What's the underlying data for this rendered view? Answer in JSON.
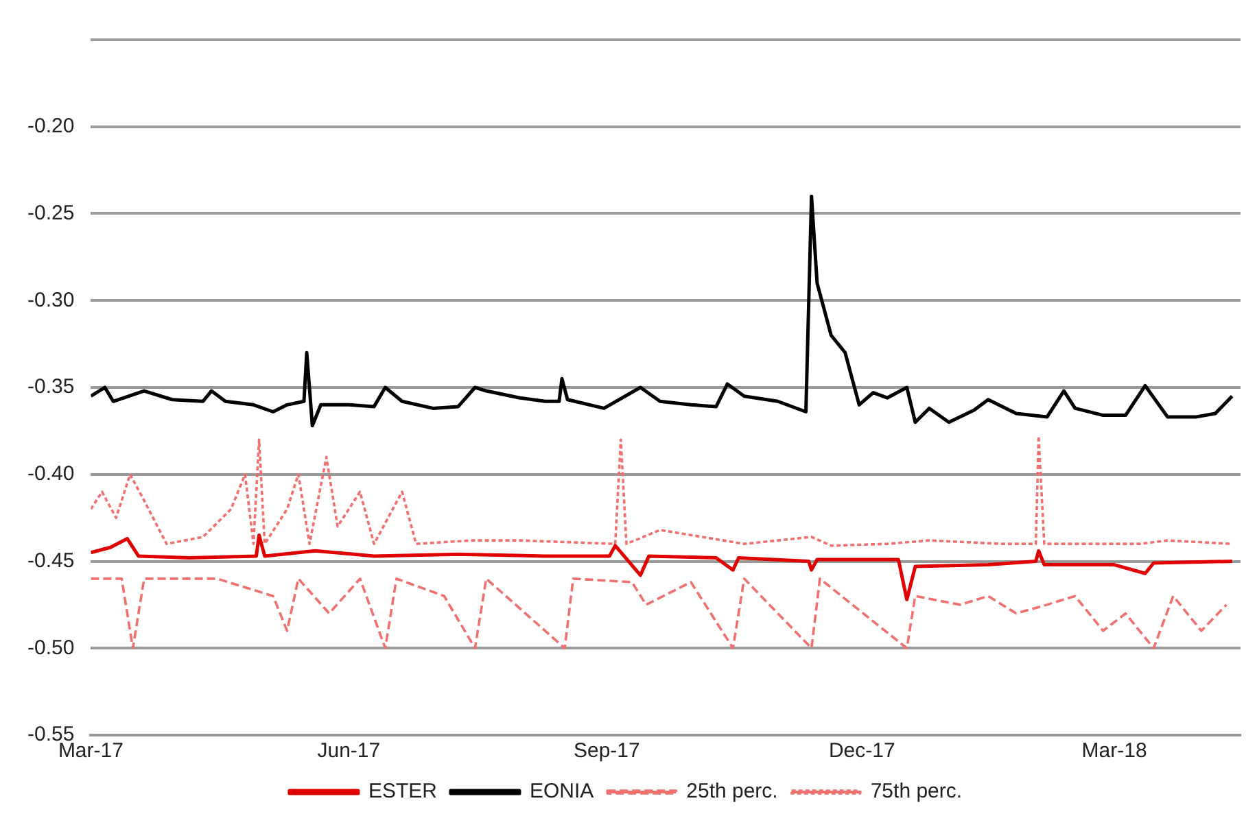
{
  "chart_data": {
    "type": "line",
    "legend": "bottom",
    "grid": "y",
    "marker": "none",
    "xlim": [
      "2017-03-01",
      "2018-04-15"
    ],
    "xticks": [
      {
        "value": "2017-03-01",
        "label": "Mar-17"
      },
      {
        "value": "2017-06-01",
        "label": "Jun-17"
      },
      {
        "value": "2017-09-01",
        "label": "Sep-17"
      },
      {
        "value": "2017-12-01",
        "label": "Dec-17"
      },
      {
        "value": "2018-03-01",
        "label": "Mar-18"
      }
    ],
    "ylim": [
      -0.55,
      -0.15
    ],
    "yticks": [
      -0.55,
      {
        "value": -0.5,
        "label": "-0.50"
      },
      -0.45,
      {
        "value": -0.4,
        "label": "-0.40"
      },
      -0.35,
      {
        "value": -0.3,
        "label": "-0.30"
      },
      -0.25,
      {
        "value": -0.2,
        "label": "-0.20"
      },
      {
        "value": -0.15,
        "label": null
      }
    ],
    "series": [
      {
        "name": "ESTER",
        "color": "#e00000",
        "line_style": "solid",
        "x": [
          "2017-03-01",
          "2017-03-08",
          "2017-03-14",
          "2017-03-18",
          "2017-04-05",
          "2017-04-29",
          "2017-04-30",
          "2017-05-02",
          "2017-05-20",
          "2017-06-10",
          "2017-07-10",
          "2017-08-10",
          "2017-09-02",
          "2017-09-04",
          "2017-09-13",
          "2017-09-16",
          "2017-10-10",
          "2017-10-16",
          "2017-10-18",
          "2017-11-12",
          "2017-11-13",
          "2017-11-15",
          "2017-12-14",
          "2017-12-17",
          "2017-12-20",
          "2018-01-15",
          "2018-02-01",
          "2018-02-02",
          "2018-02-04",
          "2018-03-01",
          "2018-03-12",
          "2018-03-15",
          "2018-04-12"
        ],
        "values": [
          -0.445,
          -0.442,
          -0.437,
          -0.447,
          -0.448,
          -0.447,
          -0.435,
          -0.447,
          -0.444,
          -0.447,
          -0.446,
          -0.447,
          -0.447,
          -0.441,
          -0.458,
          -0.447,
          -0.448,
          -0.455,
          -0.448,
          -0.45,
          -0.455,
          -0.449,
          -0.449,
          -0.472,
          -0.453,
          -0.452,
          -0.45,
          -0.444,
          -0.452,
          -0.452,
          -0.457,
          -0.451,
          -0.45
        ]
      },
      {
        "name": "EONIA",
        "color": "#000000",
        "line_style": "solid",
        "x": [
          "2017-03-01",
          "2017-03-06",
          "2017-03-09",
          "2017-03-20",
          "2017-03-30",
          "2017-04-10",
          "2017-04-13",
          "2017-04-18",
          "2017-04-28",
          "2017-05-05",
          "2017-05-10",
          "2017-05-16",
          "2017-05-17",
          "2017-05-19",
          "2017-05-22",
          "2017-06-01",
          "2017-06-10",
          "2017-06-14",
          "2017-06-20",
          "2017-07-01",
          "2017-07-10",
          "2017-07-16",
          "2017-07-20",
          "2017-08-01",
          "2017-08-10",
          "2017-08-15",
          "2017-08-16",
          "2017-08-18",
          "2017-08-31",
          "2017-09-13",
          "2017-09-20",
          "2017-10-01",
          "2017-10-10",
          "2017-10-14",
          "2017-10-20",
          "2017-11-01",
          "2017-11-11",
          "2017-11-13",
          "2017-11-15",
          "2017-11-20",
          "2017-11-25",
          "2017-11-30",
          "2017-12-05",
          "2017-12-10",
          "2017-12-17",
          "2017-12-20",
          "2017-12-25",
          "2018-01-01",
          "2018-01-10",
          "2018-01-15",
          "2018-01-25",
          "2018-02-05",
          "2018-02-11",
          "2018-02-15",
          "2018-02-25",
          "2018-03-05",
          "2018-03-12",
          "2018-03-20",
          "2018-03-30",
          "2018-04-06",
          "2018-04-12"
        ],
        "values": [
          -0.355,
          -0.35,
          -0.358,
          -0.352,
          -0.357,
          -0.358,
          -0.352,
          -0.358,
          -0.36,
          -0.364,
          -0.36,
          -0.358,
          -0.33,
          -0.372,
          -0.36,
          -0.36,
          -0.361,
          -0.35,
          -0.358,
          -0.362,
          -0.361,
          -0.35,
          -0.352,
          -0.356,
          -0.358,
          -0.358,
          -0.345,
          -0.357,
          -0.362,
          -0.35,
          -0.358,
          -0.36,
          -0.361,
          -0.348,
          -0.355,
          -0.358,
          -0.364,
          -0.24,
          -0.29,
          -0.32,
          -0.33,
          -0.36,
          -0.353,
          -0.356,
          -0.35,
          -0.37,
          -0.362,
          -0.37,
          -0.363,
          -0.357,
          -0.365,
          -0.367,
          -0.352,
          -0.362,
          -0.366,
          -0.366,
          -0.349,
          -0.367,
          -0.367,
          -0.365,
          -0.355
        ]
      },
      {
        "name": "25th perc.",
        "color": "#f07070",
        "line_style": "dashed",
        "x": [
          "2017-03-01",
          "2017-03-12",
          "2017-03-16",
          "2017-03-20",
          "2017-04-15",
          "2017-05-05",
          "2017-05-10",
          "2017-05-14",
          "2017-05-25",
          "2017-06-05",
          "2017-06-14",
          "2017-06-18",
          "2017-07-05",
          "2017-07-16",
          "2017-07-20",
          "2017-08-17",
          "2017-08-20",
          "2017-09-10",
          "2017-09-15",
          "2017-10-01",
          "2017-10-16",
          "2017-10-20",
          "2017-11-13",
          "2017-11-16",
          "2017-12-17",
          "2017-12-20",
          "2018-01-05",
          "2018-01-15",
          "2018-01-25",
          "2018-02-05",
          "2018-02-15",
          "2018-02-25",
          "2018-03-05",
          "2018-03-15",
          "2018-03-22",
          "2018-04-01",
          "2018-04-10"
        ],
        "values": [
          -0.46,
          -0.46,
          -0.5,
          -0.46,
          -0.46,
          -0.47,
          -0.49,
          -0.46,
          -0.48,
          -0.46,
          -0.5,
          -0.46,
          -0.47,
          -0.5,
          -0.46,
          -0.5,
          -0.46,
          -0.462,
          -0.475,
          -0.462,
          -0.5,
          -0.46,
          -0.5,
          -0.46,
          -0.5,
          -0.47,
          -0.475,
          -0.47,
          -0.48,
          -0.475,
          -0.47,
          -0.49,
          -0.48,
          -0.5,
          -0.47,
          -0.49,
          -0.475
        ]
      },
      {
        "name": "75th perc.",
        "color": "#f07070",
        "line_style": "dotted",
        "x": [
          "2017-03-01",
          "2017-03-05",
          "2017-03-10",
          "2017-03-15",
          "2017-03-20",
          "2017-03-28",
          "2017-04-10",
          "2017-04-20",
          "2017-04-25",
          "2017-04-28",
          "2017-04-30",
          "2017-05-02",
          "2017-05-10",
          "2017-05-14",
          "2017-05-18",
          "2017-05-24",
          "2017-05-28",
          "2017-06-05",
          "2017-06-10",
          "2017-06-20",
          "2017-06-25",
          "2017-07-15",
          "2017-08-01",
          "2017-09-04",
          "2017-09-06",
          "2017-09-08",
          "2017-09-20",
          "2017-10-20",
          "2017-11-13",
          "2017-11-20",
          "2017-12-10",
          "2017-12-25",
          "2018-01-20",
          "2018-02-01",
          "2018-02-02",
          "2018-02-04",
          "2018-03-10",
          "2018-03-20",
          "2018-04-12"
        ],
        "values": [
          -0.42,
          -0.41,
          -0.425,
          -0.4,
          -0.415,
          -0.44,
          -0.436,
          -0.42,
          -0.4,
          -0.44,
          -0.38,
          -0.44,
          -0.42,
          -0.4,
          -0.44,
          -0.39,
          -0.43,
          -0.41,
          -0.44,
          -0.41,
          -0.44,
          -0.438,
          -0.438,
          -0.44,
          -0.38,
          -0.44,
          -0.432,
          -0.44,
          -0.436,
          -0.441,
          -0.44,
          -0.438,
          -0.44,
          -0.44,
          -0.378,
          -0.44,
          -0.44,
          -0.438,
          -0.44
        ]
      }
    ]
  }
}
